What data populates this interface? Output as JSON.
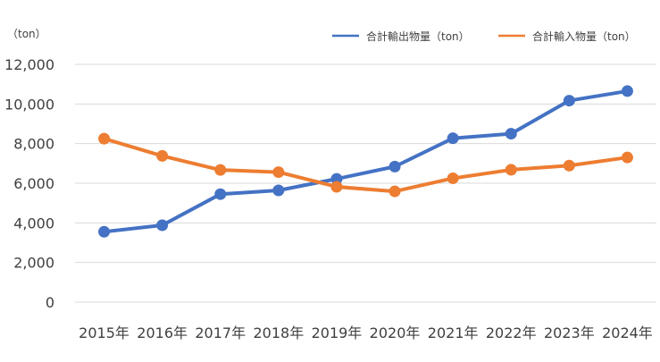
{
  "chart_data": {
    "type": "line",
    "title": "",
    "xlabel": "",
    "ylabel": "",
    "unit_label": "（ton）",
    "categories": [
      "2015年",
      "2016年",
      "2017年",
      "2018年",
      "2019年",
      "2020年",
      "2021年",
      "2022年",
      "2023年",
      "2024年"
    ],
    "ylim": [
      0,
      12000
    ],
    "yticks": [
      0,
      2000,
      4000,
      6000,
      8000,
      10000,
      12000
    ],
    "ytick_labels": [
      "0",
      "2,000",
      "4,000",
      "6,000",
      "8,000",
      "10,000",
      "12,000"
    ],
    "grid": true,
    "legend_position": "top-right",
    "series": [
      {
        "name": "合計輸出物量（ton）",
        "color": "#4472c4",
        "values": [
          3550,
          3880,
          5450,
          5640,
          6220,
          6840,
          8270,
          8500,
          10170,
          10650
        ]
      },
      {
        "name": "合計輸入物量（ton）",
        "color": "#ed7d31",
        "values": [
          8250,
          7380,
          6670,
          6560,
          5820,
          5590,
          6250,
          6680,
          6890,
          7300
        ]
      }
    ]
  }
}
